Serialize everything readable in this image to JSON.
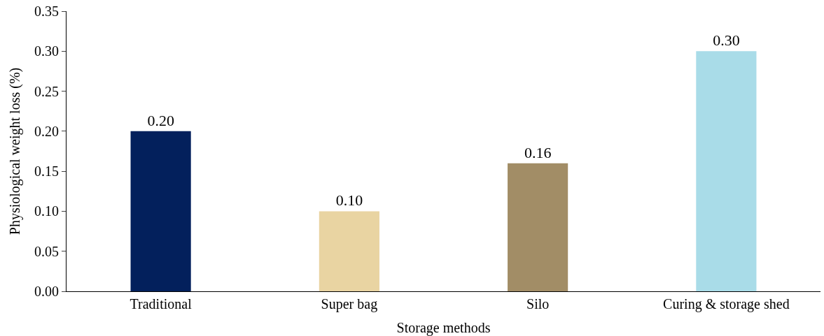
{
  "chart_data": {
    "type": "bar",
    "xlabel": "Storage methods",
    "ylabel": "Physiological weight loss (%)",
    "categories": [
      "Traditional",
      "Super bag",
      "Silo",
      "Curing & storage shed"
    ],
    "values": [
      0.2,
      0.1,
      0.16,
      0.3
    ],
    "value_labels": [
      "0.20",
      "0.10",
      "0.16",
      "0.30"
    ],
    "colors": [
      "#03205c",
      "#e9d4a2",
      "#a28d66",
      "#a9dce8"
    ],
    "ylim": [
      0,
      0.35
    ],
    "yticks": [
      {
        "value": 0,
        "label": "0.00"
      },
      {
        "value": 0.05,
        "label": "0.05"
      },
      {
        "value": 0.1,
        "label": "0.10"
      },
      {
        "value": 0.15,
        "label": "0.15"
      },
      {
        "value": 0.2,
        "label": "0.20"
      },
      {
        "value": 0.25,
        "label": "0.25"
      },
      {
        "value": 0.3,
        "label": "0.30"
      },
      {
        "value": 0.35,
        "label": "0.35"
      }
    ],
    "legend": false
  }
}
